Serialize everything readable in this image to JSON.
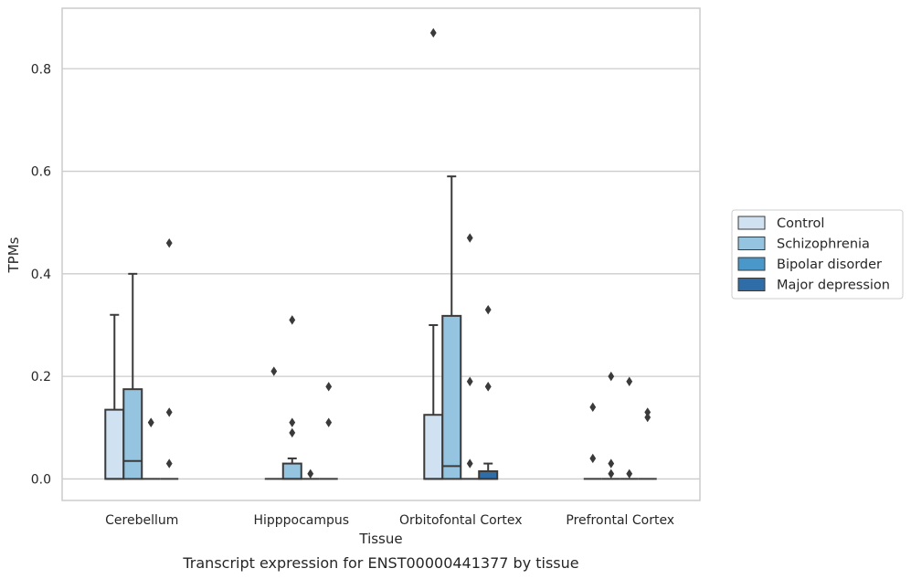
{
  "caption": "Transcript expression for ENST00000441377 by tissue",
  "chart_data": {
    "type": "box",
    "title": "",
    "xlabel": "Tissue",
    "ylabel": "TPMs",
    "ylim": [
      -0.042,
      0.918
    ],
    "yticks": [
      0.0,
      0.2,
      0.4,
      0.6,
      0.8
    ],
    "ytick_labels": [
      "0.0",
      "0.2",
      "0.4",
      "0.6",
      "0.8"
    ],
    "grid": "horizontal",
    "legend_position": "right",
    "categories": [
      "Cerebellum",
      "Hipppocampus",
      "Orbitofontal Cortex",
      "Prefrontal Cortex"
    ],
    "series": [
      {
        "name": "Control",
        "color": "#d0e1f2",
        "boxes": [
          {
            "q1": 0.0,
            "median": 0.0,
            "q3": 0.135,
            "whisker_low": 0.0,
            "whisker_high": 0.32,
            "outliers": []
          },
          {
            "q1": 0.0,
            "median": 0.0,
            "q3": 0.0,
            "whisker_low": 0.0,
            "whisker_high": 0.0,
            "outliers": [
              0.21
            ]
          },
          {
            "q1": 0.0,
            "median": 0.0,
            "q3": 0.125,
            "whisker_low": 0.0,
            "whisker_high": 0.3,
            "outliers": [
              0.87
            ]
          },
          {
            "q1": 0.0,
            "median": 0.0,
            "q3": 0.0,
            "whisker_low": 0.0,
            "whisker_high": 0.0,
            "outliers": [
              0.14,
              0.04
            ]
          }
        ]
      },
      {
        "name": "Schizophrenia",
        "color": "#94c4df",
        "boxes": [
          {
            "q1": 0.0,
            "median": 0.035,
            "q3": 0.175,
            "whisker_low": 0.0,
            "whisker_high": 0.4,
            "outliers": []
          },
          {
            "q1": 0.0,
            "median": 0.0,
            "q3": 0.03,
            "whisker_low": 0.0,
            "whisker_high": 0.04,
            "outliers": [
              0.31,
              0.11,
              0.09
            ]
          },
          {
            "q1": 0.0,
            "median": 0.025,
            "q3": 0.318,
            "whisker_low": 0.0,
            "whisker_high": 0.59,
            "outliers": []
          },
          {
            "q1": 0.0,
            "median": 0.0,
            "q3": 0.0,
            "whisker_low": 0.0,
            "whisker_high": 0.0,
            "outliers": [
              0.2,
              0.03,
              0.01
            ]
          }
        ]
      },
      {
        "name": "Bipolar disorder",
        "color": "#4a98c9",
        "boxes": [
          {
            "q1": 0.0,
            "median": 0.0,
            "q3": 0.0,
            "whisker_low": 0.0,
            "whisker_high": 0.0,
            "outliers": [
              0.11,
              0.11
            ]
          },
          {
            "q1": 0.0,
            "median": 0.0,
            "q3": 0.0,
            "whisker_low": 0.0,
            "whisker_high": 0.0,
            "outliers": [
              0.01
            ]
          },
          {
            "q1": 0.0,
            "median": 0.0,
            "q3": 0.0,
            "whisker_low": 0.0,
            "whisker_high": 0.0,
            "outliers": [
              0.47,
              0.19,
              0.03
            ]
          },
          {
            "q1": 0.0,
            "median": 0.0,
            "q3": 0.0,
            "whisker_low": 0.0,
            "whisker_high": 0.0,
            "outliers": [
              0.19,
              0.01
            ]
          }
        ]
      },
      {
        "name": "Major depression",
        "color": "#2e6da8",
        "boxes": [
          {
            "q1": 0.0,
            "median": 0.0,
            "q3": 0.0,
            "whisker_low": 0.0,
            "whisker_high": 0.0,
            "outliers": [
              0.46,
              0.13,
              0.03
            ]
          },
          {
            "q1": 0.0,
            "median": 0.0,
            "q3": 0.0,
            "whisker_low": 0.0,
            "whisker_high": 0.0,
            "outliers": [
              0.18,
              0.11
            ]
          },
          {
            "q1": 0.0,
            "median": 0.0,
            "q3": 0.015,
            "whisker_low": 0.0,
            "whisker_high": 0.03,
            "outliers": [
              0.33,
              0.18,
              0.18
            ]
          },
          {
            "q1": 0.0,
            "median": 0.0,
            "q3": 0.0,
            "whisker_low": 0.0,
            "whisker_high": 0.0,
            "outliers": [
              0.13,
              0.12
            ]
          }
        ]
      }
    ]
  }
}
